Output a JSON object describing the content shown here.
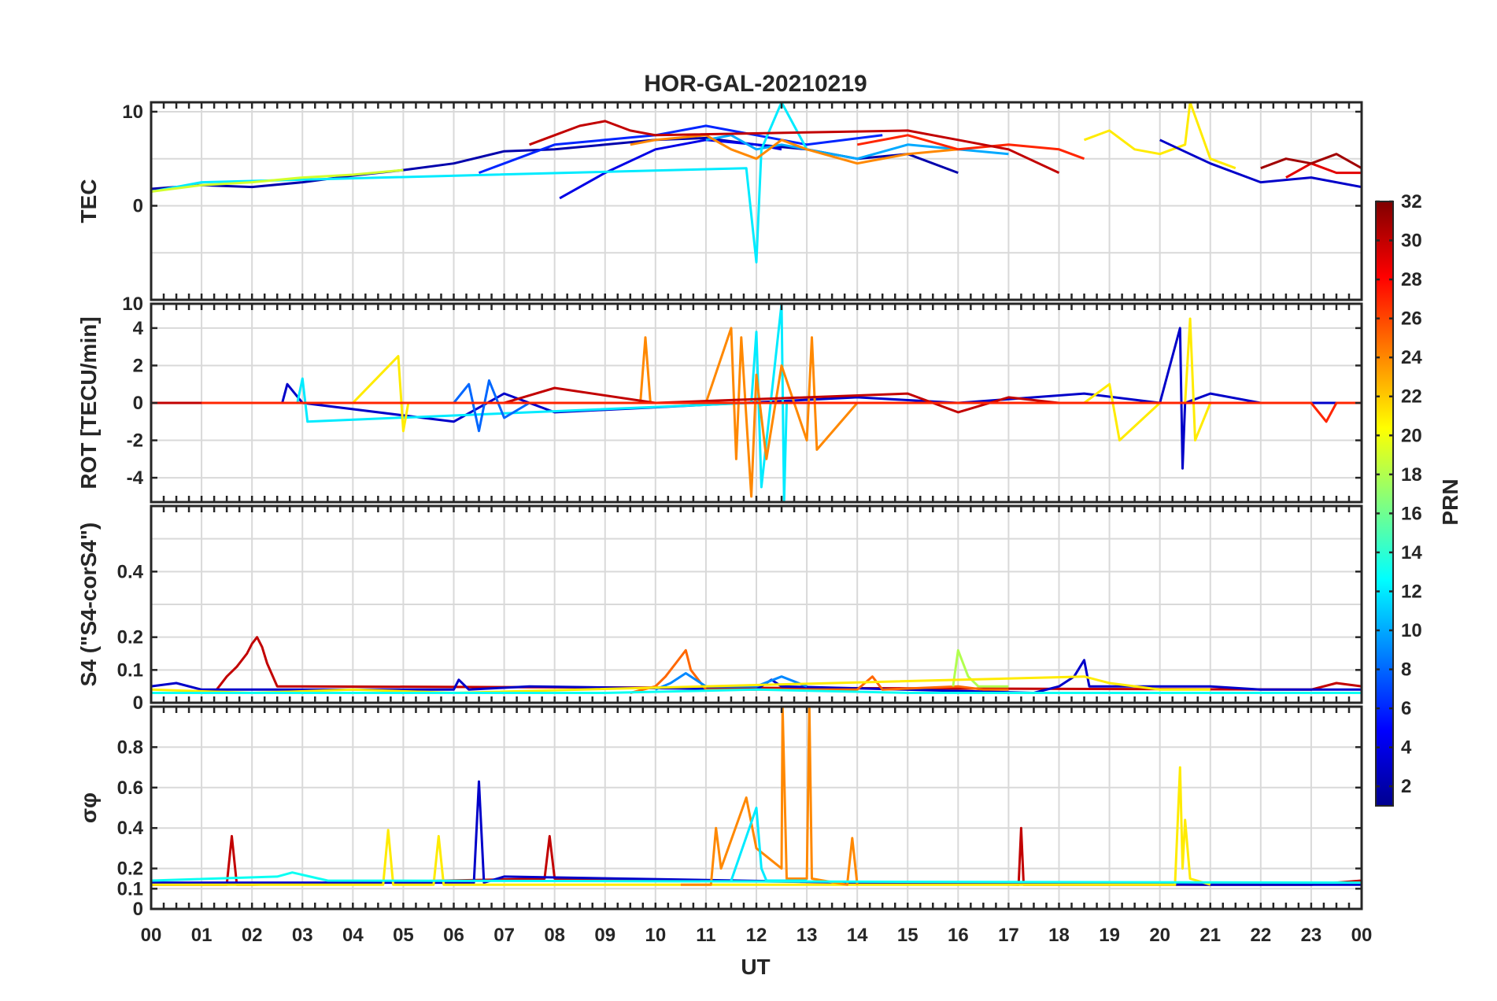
{
  "chart_data": {
    "type": "line",
    "title": "HOR-GAL-20210219",
    "xlabel": "UT",
    "x_unit": "hours",
    "xlim": [
      0,
      24
    ],
    "x_tick_values": [
      0,
      1,
      2,
      3,
      4,
      5,
      6,
      7,
      8,
      9,
      10,
      11,
      12,
      13,
      14,
      15,
      16,
      17,
      18,
      19,
      20,
      21,
      22,
      23,
      24
    ],
    "x_tick_labels": [
      "00",
      "01",
      "02",
      "03",
      "04",
      "05",
      "06",
      "07",
      "08",
      "09",
      "10",
      "11",
      "12",
      "13",
      "14",
      "15",
      "16",
      "17",
      "18",
      "19",
      "20",
      "21",
      "22",
      "23",
      "00"
    ],
    "colorbar": {
      "label": "PRN",
      "colormap": "jet",
      "range": [
        1,
        32
      ],
      "tick_values": [
        2,
        4,
        6,
        8,
        10,
        12,
        14,
        16,
        18,
        20,
        22,
        24,
        26,
        28,
        30,
        32
      ],
      "tick_labels": [
        "2",
        "4",
        "6",
        "8",
        "10",
        "12",
        "14",
        "16",
        "18",
        "20",
        "22",
        "24",
        "26",
        "28",
        "30",
        "32"
      ],
      "colors": [
        "#00008f",
        "#0000ff",
        "#0080ff",
        "#00ffff",
        "#80ff80",
        "#ffff00",
        "#ff8000",
        "#ff0000",
        "#800000"
      ]
    },
    "panels": [
      {
        "id": "tec",
        "ylabel": "TEC",
        "ylim": [
          -10,
          11
        ],
        "y_tick_values": [
          0,
          10
        ],
        "y_tick_labels": [
          "0",
          "10"
        ],
        "y_gridlines": [
          -5,
          0,
          5,
          10
        ],
        "top_clipped_label": "",
        "series": [
          {
            "prn": 2,
            "x": [
              0.0,
              1.0,
              2.0,
              3.0,
              4.0,
              5.0,
              6.0,
              7.0,
              8.0,
              9.0,
              10.0,
              11.0,
              12.0,
              13.0,
              14.0,
              15.0,
              16.0
            ],
            "y": [
              1.8,
              2.2,
              2.0,
              2.5,
              3.2,
              3.8,
              4.5,
              5.8,
              6.0,
              6.5,
              7.0,
              7.2,
              6.5,
              6.0,
              5.0,
              5.5,
              3.5
            ]
          },
          {
            "prn": 4,
            "x": [
              8.1,
              9.0,
              10.0,
              11.0,
              12.0,
              12.5
            ],
            "y": [
              0.8,
              3.5,
              6.0,
              7.0,
              6.5,
              6.0
            ]
          },
          {
            "prn": 6,
            "x": [
              6.5,
              7.0,
              8.0,
              9.0,
              10.0,
              11.0,
              12.0,
              13.0,
              14.5
            ],
            "y": [
              3.5,
              4.5,
              6.5,
              7.0,
              7.5,
              8.5,
              7.5,
              6.5,
              7.5
            ]
          },
          {
            "prn": 10,
            "x": [
              11.0,
              11.5,
              12.0,
              12.5,
              13.0,
              14.0,
              15.0,
              16.0,
              17.0
            ],
            "y": [
              7.0,
              7.5,
              6.0,
              6.5,
              6.0,
              5.0,
              6.5,
              6.0,
              5.5
            ]
          },
          {
            "prn": 12,
            "x": [
              0.0,
              0.5,
              1.0,
              11.8,
              12.0,
              12.1,
              12.5,
              13.0
            ],
            "y": [
              1.5,
              2.0,
              2.5,
              4.0,
              -6.0,
              6.0,
              11.0,
              6.0
            ]
          },
          {
            "prn": 19,
            "x": [
              0.0,
              1.0,
              2.0,
              3.0,
              4.0,
              5.0
            ],
            "y": [
              1.5,
              2.2,
              2.5,
              3.0,
              3.3,
              3.8
            ]
          },
          {
            "prn": 21,
            "x": [
              18.5,
              19.0,
              19.5,
              20.0,
              20.5,
              20.6,
              21.0,
              21.5
            ],
            "y": [
              7.0,
              8.0,
              6.0,
              5.5,
              6.5,
              11.0,
              5.0,
              4.0
            ]
          },
          {
            "prn": 24,
            "x": [
              9.5,
              10.0,
              11.0,
              11.5,
              12.0,
              12.5,
              13.0,
              14.0,
              15.0,
              16.0
            ],
            "y": [
              6.5,
              7.0,
              7.5,
              6.0,
              5.0,
              7.0,
              6.0,
              4.5,
              5.5,
              6.0
            ]
          },
          {
            "prn": 27,
            "x": [
              14.0,
              15.0,
              16.0,
              17.0,
              18.0,
              18.5
            ],
            "y": [
              6.5,
              7.5,
              6.0,
              6.5,
              6.0,
              5.0
            ]
          },
          {
            "prn": 30,
            "x": [
              7.5,
              8.0,
              8.5,
              9.0,
              9.5,
              10.0,
              15.0,
              16.0,
              17.0,
              18.0
            ],
            "y": [
              6.5,
              7.5,
              8.5,
              9.0,
              8.0,
              7.5,
              8.0,
              7.0,
              6.0,
              3.5
            ]
          },
          {
            "prn": 3,
            "x": [
              20.0,
              21.0,
              22.0,
              23.0,
              24.0
            ],
            "y": [
              7.0,
              4.5,
              2.5,
              3.0,
              2.0
            ]
          },
          {
            "prn": 29,
            "x": [
              22.5,
              23.0,
              23.5,
              24.0
            ],
            "y": [
              3.0,
              4.5,
              3.5,
              3.5
            ]
          },
          {
            "prn": 31,
            "x": [
              22.0,
              22.5,
              23.0,
              23.5,
              24.0
            ],
            "y": [
              4.0,
              5.0,
              4.5,
              5.5,
              4.0
            ]
          }
        ]
      },
      {
        "id": "rot",
        "ylabel": "ROT [TECU/min]",
        "ylim": [
          -5.3,
          5.3
        ],
        "y_tick_values": [
          -4,
          -2,
          0,
          2,
          4
        ],
        "y_tick_labels": [
          "-4",
          "-2",
          "0",
          "2",
          "4"
        ],
        "y_gridlines": [
          -4,
          -2,
          0,
          2,
          4
        ],
        "top_clipped_label": "10",
        "series": [
          {
            "prn": 3,
            "x": [
              0.0,
              2.6,
              2.7,
              3.0,
              6.0,
              7.0,
              8.0,
              14.0,
              16.0,
              18.5,
              20.0,
              20.4,
              20.45,
              20.5,
              21.0,
              22.0,
              23.0,
              24.0
            ],
            "y": [
              0,
              0,
              1.0,
              0,
              -1.0,
              0.5,
              -0.5,
              0.3,
              0,
              0.5,
              0,
              4.0,
              -3.5,
              0,
              0.5,
              0,
              0,
              0
            ]
          },
          {
            "prn": 12,
            "x": [
              0.0,
              2.9,
              3.0,
              3.1,
              11.9,
              12.0,
              12.1,
              12.5,
              12.55,
              12.6,
              13.0,
              14.0
            ],
            "y": [
              0,
              0,
              1.3,
              -1.0,
              0,
              3.8,
              -4.5,
              5.3,
              -5.3,
              0,
              0,
              0
            ]
          },
          {
            "prn": 21,
            "x": [
              4.0,
              4.9,
              5.0,
              5.1,
              6.0,
              18.5,
              19.0,
              19.2,
              20.0,
              20.5,
              20.6,
              20.7,
              21.0,
              21.5
            ],
            "y": [
              0,
              2.5,
              -1.5,
              0,
              0,
              0,
              1.0,
              -2.0,
              0,
              0,
              4.5,
              -2.0,
              0,
              0
            ]
          },
          {
            "prn": 24,
            "x": [
              9.7,
              9.8,
              9.9,
              11.0,
              11.5,
              11.6,
              11.7,
              11.9,
              12.0,
              12.2,
              12.5,
              13.0,
              13.1,
              13.2,
              14.0
            ],
            "y": [
              0,
              3.5,
              0,
              0,
              4.0,
              -3.0,
              3.5,
              -5.0,
              1.5,
              -3.0,
              2.0,
              -2.0,
              3.5,
              -2.5,
              0
            ]
          },
          {
            "prn": 30,
            "x": [
              0.0,
              4.0,
              7.0,
              8.0,
              10.0,
              15.0,
              16.0,
              17.0,
              18.0,
              18.5
            ],
            "y": [
              0,
              0,
              0,
              0.8,
              0,
              0.5,
              -0.5,
              0.3,
              0,
              0
            ]
          },
          {
            "prn": 8,
            "x": [
              6.0,
              6.3,
              6.5,
              6.7,
              7.0,
              7.5
            ],
            "y": [
              0,
              1.0,
              -1.5,
              1.2,
              -0.8,
              0
            ]
          },
          {
            "prn": 27,
            "x": [
              1.0,
              2.0,
              3.0,
              4.0,
              22.5,
              23.0,
              23.3,
              23.5,
              24.0
            ],
            "y": [
              0,
              0,
              0,
              0,
              0,
              0,
              -1.0,
              0,
              0
            ]
          }
        ]
      },
      {
        "id": "s4",
        "ylabel": "S4 (\"S4-corS4\")",
        "ylim": [
          0,
          0.6
        ],
        "y_tick_values": [
          0,
          0.1,
          0.2,
          0.4
        ],
        "y_tick_labels": [
          "0",
          "0.1",
          "0.2",
          "0.4"
        ],
        "y_gridlines": [
          0.1,
          0.2,
          0.3,
          0.4,
          0.5
        ],
        "top_clipped_label": "",
        "series": [
          {
            "prn": 30,
            "x": [
              1.3,
              1.5,
              1.7,
              1.9,
              2.0,
              2.1,
              2.2,
              2.3,
              2.5,
              23.0,
              23.5,
              24.0
            ],
            "y": [
              0.04,
              0.08,
              0.11,
              0.15,
              0.18,
              0.2,
              0.17,
              0.12,
              0.05,
              0.04,
              0.06,
              0.05
            ]
          },
          {
            "prn": 3,
            "x": [
              0.0,
              0.5,
              1.0,
              6.0,
              6.1,
              6.3,
              7.5,
              12.0,
              12.3,
              12.5,
              17.5,
              18.0,
              18.3,
              18.5,
              18.6,
              21.0,
              22.0,
              24.0
            ],
            "y": [
              0.05,
              0.06,
              0.04,
              0.04,
              0.07,
              0.04,
              0.05,
              0.04,
              0.07,
              0.05,
              0.03,
              0.05,
              0.08,
              0.13,
              0.05,
              0.05,
              0.04,
              0.04
            ]
          },
          {
            "prn": 25,
            "x": [
              9.5,
              10.0,
              10.2,
              10.4,
              10.6,
              10.7,
              11.0,
              13.0,
              14.0,
              14.3,
              14.5,
              16.0,
              16.5,
              17.0
            ],
            "y": [
              0.03,
              0.05,
              0.08,
              0.12,
              0.16,
              0.1,
              0.04,
              0.04,
              0.04,
              0.08,
              0.04,
              0.05,
              0.04,
              0.04
            ]
          },
          {
            "prn": 9,
            "x": [
              10.0,
              10.3,
              10.6,
              11.0,
              12.0,
              12.5,
              13.0
            ],
            "y": [
              0.04,
              0.06,
              0.09,
              0.05,
              0.05,
              0.08,
              0.05
            ]
          },
          {
            "prn": 18,
            "x": [
              15.9,
              16.0,
              16.1,
              16.2,
              16.4,
              17.0
            ],
            "y": [
              0.05,
              0.16,
              0.12,
              0.08,
              0.05,
              0.05
            ]
          },
          {
            "prn": 21,
            "x": [
              0.0,
              2.0,
              4.0,
              6.0,
              18.5,
              19.0,
              20.0,
              21.0
            ],
            "y": [
              0.04,
              0.03,
              0.04,
              0.03,
              0.08,
              0.06,
              0.04,
              0.04
            ]
          },
          {
            "prn": 13,
            "x": [
              0.0,
              3.0,
              6.0,
              9.0,
              12.0,
              15.0,
              18.0,
              21.0,
              24.0
            ],
            "y": [
              0.03,
              0.03,
              0.03,
              0.03,
              0.04,
              0.03,
              0.03,
              0.03,
              0.03
            ]
          }
        ]
      },
      {
        "id": "sigma_phi",
        "ylabel": "σφ",
        "ylim": [
          0,
          1.0
        ],
        "y_tick_values": [
          0,
          0.1,
          0.2,
          0.4,
          0.6,
          0.8
        ],
        "y_tick_labels": [
          "0",
          "0.1",
          "0.2",
          "0.4",
          "0.6",
          "0.8"
        ],
        "y_gridlines": [
          0.1,
          0.2,
          0.4,
          0.6,
          0.8
        ],
        "top_clipped_label": "",
        "series": [
          {
            "prn": 30,
            "x": [
              0.0,
              1.5,
              1.6,
              1.7,
              2.0,
              7.8,
              7.9,
              8.0,
              17.2,
              17.25,
              17.3,
              23.0,
              24.0
            ],
            "y": [
              0.12,
              0.12,
              0.36,
              0.12,
              0.12,
              0.15,
              0.36,
              0.15,
              0.12,
              0.4,
              0.12,
              0.12,
              0.14
            ]
          },
          {
            "prn": 3,
            "x": [
              0.0,
              6.4,
              6.5,
              6.6,
              7.0,
              14.0,
              21.0,
              24.0
            ],
            "y": [
              0.13,
              0.13,
              0.63,
              0.13,
              0.16,
              0.13,
              0.12,
              0.12
            ]
          },
          {
            "prn": 21,
            "x": [
              0.0,
              4.6,
              4.7,
              4.8,
              5.6,
              5.7,
              5.8,
              20.3,
              20.4,
              20.45,
              20.5,
              20.6,
              21.0
            ],
            "y": [
              0.12,
              0.12,
              0.39,
              0.12,
              0.12,
              0.36,
              0.12,
              0.12,
              0.7,
              0.2,
              0.44,
              0.15,
              0.12
            ]
          },
          {
            "prn": 24,
            "x": [
              10.5,
              11.1,
              11.2,
              11.3,
              11.8,
              12.0,
              12.5,
              12.52,
              12.6,
              13.0,
              13.05,
              13.1,
              13.8,
              13.9,
              14.0
            ],
            "y": [
              0.12,
              0.12,
              0.4,
              0.2,
              0.55,
              0.3,
              0.2,
              1.0,
              0.15,
              0.15,
              1.0,
              0.15,
              0.12,
              0.35,
              0.12
            ]
          },
          {
            "prn": 12,
            "x": [
              11.5,
              12.0,
              12.1,
              12.2,
              13.0
            ],
            "y": [
              0.14,
              0.5,
              0.2,
              0.14,
              0.14
            ]
          },
          {
            "prn": 13,
            "x": [
              0.0,
              2.5,
              2.8,
              3.5,
              24.0
            ],
            "y": [
              0.14,
              0.16,
              0.18,
              0.14,
              0.13
            ]
          }
        ]
      }
    ]
  }
}
